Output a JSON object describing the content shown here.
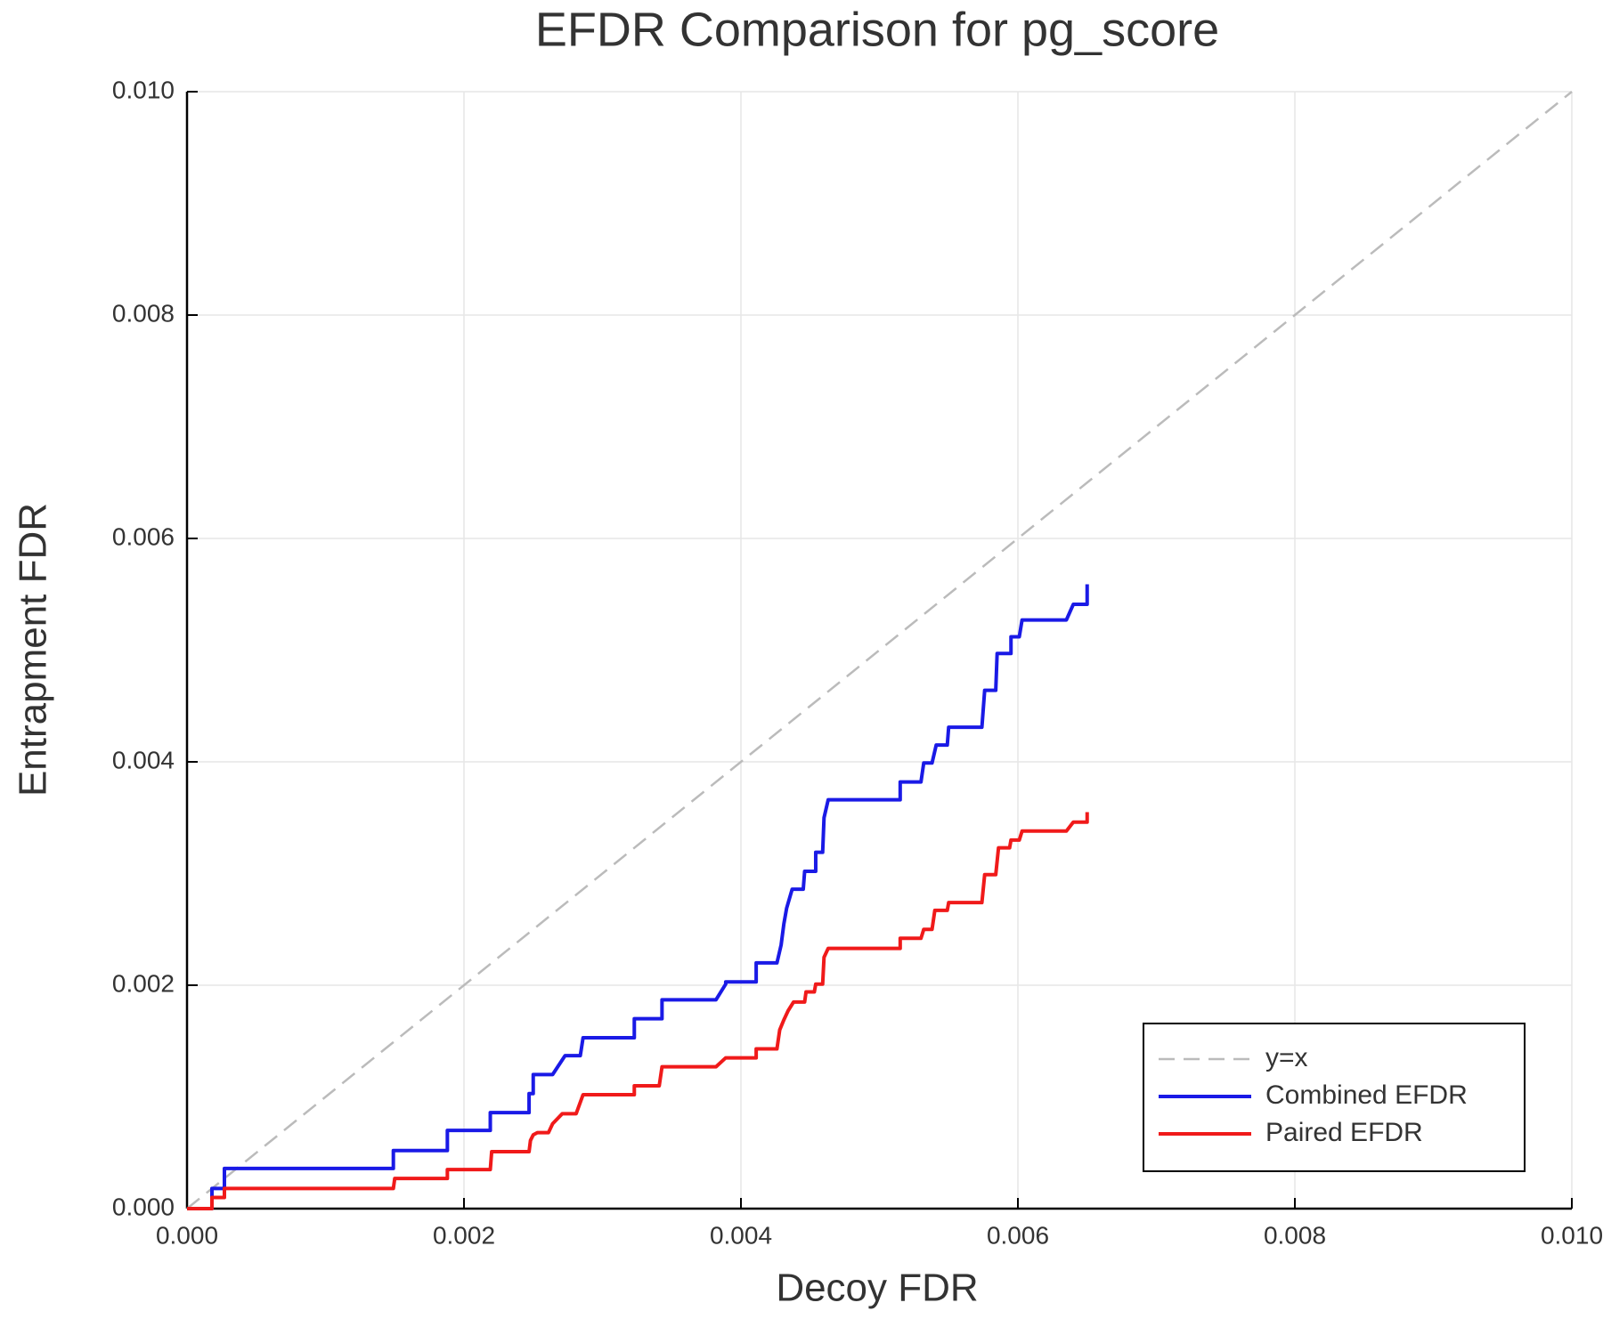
{
  "chart_data": {
    "type": "line",
    "title": "EFDR Comparison for pg_score",
    "x_label": "Decoy FDR",
    "y_label": "Entrapment FDR",
    "xlim": [
      0,
      0.01
    ],
    "ylim": [
      0,
      0.01
    ],
    "xticks": [
      {
        "value": 0,
        "label": "0.000"
      },
      0.002,
      0.004,
      0.006,
      0.008,
      {
        "value": 0.01,
        "label": "0.010"
      }
    ],
    "yticks": [
      {
        "value": 0,
        "label": "0.000"
      },
      0.002,
      0.004,
      0.006,
      0.008,
      {
        "value": 0.01,
        "label": "0.010"
      }
    ],
    "grid": true,
    "legend": "lower right",
    "series": [
      {
        "name": "y=x",
        "color": "#bbbbbb",
        "dashed": true,
        "x": [
          0,
          0.01
        ],
        "values": [
          0,
          0.01
        ]
      },
      {
        "name": "Combined EFDR",
        "color": "#1a1ae6",
        "dashed": false,
        "x": [
          0,
          0.00018,
          0.00018,
          0.00027,
          0.00027,
          0.00149,
          0.00149,
          0.00188,
          0.00188,
          0.00219,
          0.00219,
          0.00247,
          0.00247,
          0.0025,
          0.0025,
          0.00264,
          0.00273,
          0.00284,
          0.00286,
          0.00323,
          0.00323,
          0.00343,
          0.00343,
          0.00382,
          0.00389,
          0.00389,
          0.00411,
          0.00411,
          0.00426,
          0.00429,
          0.00431,
          0.00433,
          0.00437,
          0.00445,
          0.00446,
          0.00454,
          0.00454,
          0.00459,
          0.0046,
          0.00463,
          0.00515,
          0.00515,
          0.0053,
          0.00532,
          0.00538,
          0.00541,
          0.00549,
          0.0055,
          0.00574,
          0.00576,
          0.00584,
          0.00585,
          0.00595,
          0.00595,
          0.00601,
          0.00603,
          0.00635,
          0.0064,
          0.0065,
          0.0065
        ],
        "values": [
          0,
          0,
          0.00018,
          0.00018,
          0.00036,
          0.00036,
          0.00052,
          0.00052,
          0.0007,
          0.0007,
          0.00086,
          0.00086,
          0.00103,
          0.00103,
          0.0012,
          0.0012,
          0.00137,
          0.00137,
          0.00153,
          0.00153,
          0.0017,
          0.0017,
          0.00187,
          0.00187,
          0.00201,
          0.00203,
          0.00203,
          0.0022,
          0.0022,
          0.00236,
          0.00255,
          0.00269,
          0.00286,
          0.00286,
          0.00302,
          0.00302,
          0.00319,
          0.00319,
          0.0035,
          0.00366,
          0.00366,
          0.00382,
          0.00382,
          0.00399,
          0.00399,
          0.00415,
          0.00415,
          0.00431,
          0.00431,
          0.00464,
          0.00464,
          0.00497,
          0.00497,
          0.00512,
          0.00512,
          0.00527,
          0.00527,
          0.00541,
          0.00541,
          0.00559
        ]
      },
      {
        "name": "Paired EFDR",
        "color": "#f01a1a",
        "dashed": false,
        "x": [
          0,
          0.00018,
          0.00018,
          0.00027,
          0.00027,
          0.00149,
          0.0015,
          0.00188,
          0.00188,
          0.00219,
          0.0022,
          0.00247,
          0.00248,
          0.0025,
          0.00253,
          0.00261,
          0.00264,
          0.00271,
          0.00281,
          0.00286,
          0.00323,
          0.00323,
          0.00341,
          0.00343,
          0.00382,
          0.00389,
          0.00411,
          0.00411,
          0.00426,
          0.00428,
          0.00431,
          0.00434,
          0.00438,
          0.00446,
          0.00447,
          0.00453,
          0.00454,
          0.00459,
          0.0046,
          0.00463,
          0.00515,
          0.00515,
          0.0053,
          0.00532,
          0.00538,
          0.0054,
          0.00549,
          0.0055,
          0.00574,
          0.00576,
          0.00584,
          0.00586,
          0.00594,
          0.00595,
          0.00601,
          0.00603,
          0.00635,
          0.0064,
          0.0065,
          0.0065
        ],
        "values": [
          0,
          0,
          0.0001,
          0.0001,
          0.00018,
          0.00018,
          0.00027,
          0.00027,
          0.00035,
          0.00035,
          0.00051,
          0.00051,
          0.00061,
          0.00066,
          0.00068,
          0.00068,
          0.00076,
          0.00085,
          0.00085,
          0.00102,
          0.00102,
          0.0011,
          0.0011,
          0.00127,
          0.00127,
          0.00135,
          0.00135,
          0.00143,
          0.00143,
          0.0016,
          0.00169,
          0.00177,
          0.00185,
          0.00185,
          0.00194,
          0.00194,
          0.00201,
          0.00201,
          0.00225,
          0.00233,
          0.00233,
          0.00242,
          0.00242,
          0.0025,
          0.0025,
          0.00267,
          0.00267,
          0.00274,
          0.00274,
          0.00299,
          0.00299,
          0.00323,
          0.00323,
          0.0033,
          0.0033,
          0.00338,
          0.00338,
          0.00346,
          0.00346,
          0.00355
        ]
      }
    ]
  }
}
